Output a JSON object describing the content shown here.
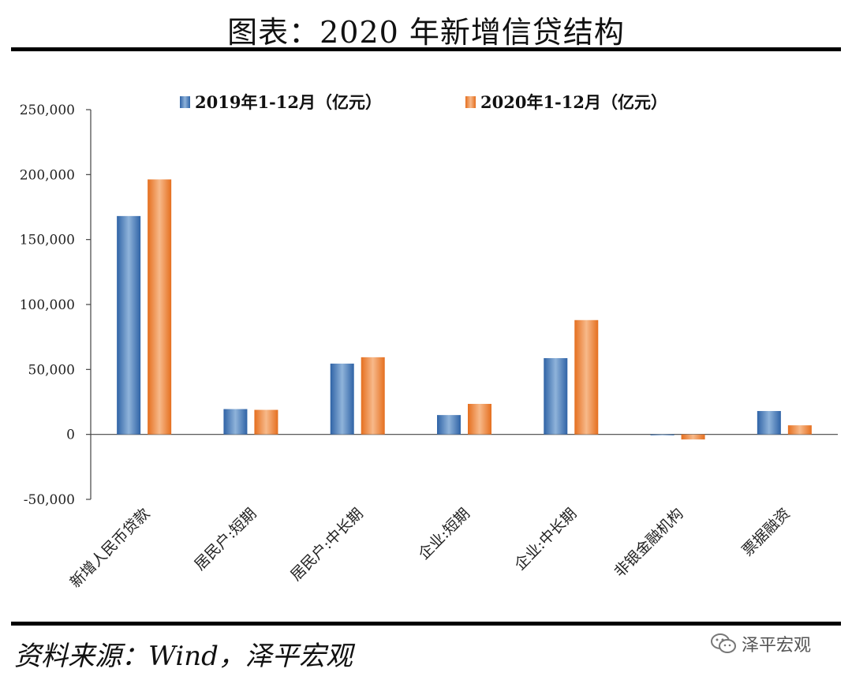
{
  "header": {
    "title": "图表：2020 年新增信贷结构"
  },
  "footer": {
    "source": "资料来源：Wind，泽平宏观",
    "brand": "泽平宏观",
    "brand_icon": "wechat-icon"
  },
  "chart_data": {
    "type": "bar",
    "categories": [
      "新增人民币贷款",
      "居民户:短期",
      "居民户:中长期",
      "企业:短期",
      "企业:中长期",
      "非银金融机构",
      "票据融资"
    ],
    "series": [
      {
        "name": "2019年1-12月（亿元）",
        "color": "#3f74b6",
        "values": [
          168100,
          19500,
          54500,
          14900,
          58700,
          -700,
          18000
        ]
      },
      {
        "name": "2020年1-12月（亿元）",
        "color": "#ee8233",
        "values": [
          196300,
          18900,
          59400,
          23500,
          88000,
          -3900,
          7000
        ]
      }
    ],
    "y_ticks": [
      "250,000",
      "200,000",
      "150,000",
      "100,000",
      "50,000",
      "0",
      "-50,000"
    ],
    "ylim": [
      -50000,
      250000
    ],
    "legend_position": "top",
    "grid": false
  }
}
